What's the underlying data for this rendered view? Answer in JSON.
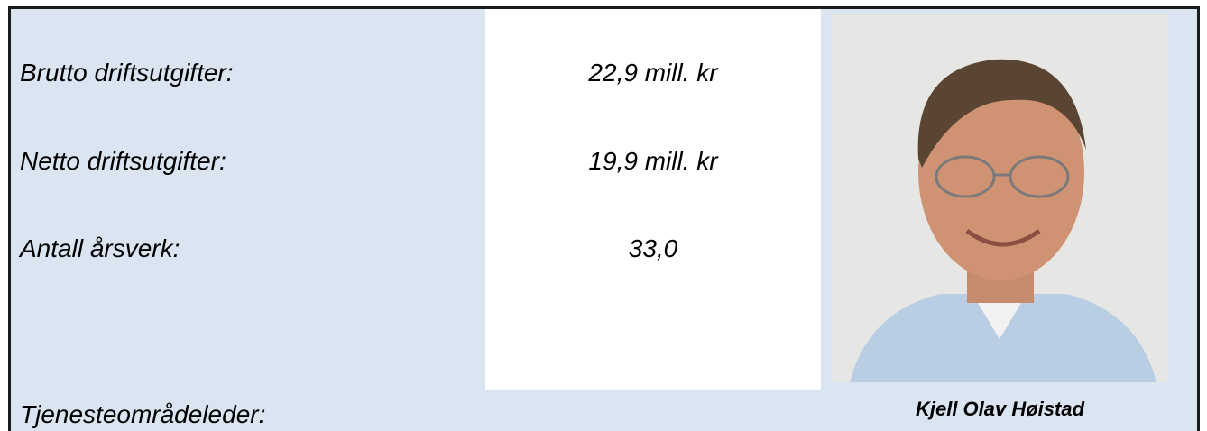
{
  "rows": [
    {
      "label": "Brutto driftsutgifter:",
      "value": "22,9 mill. kr"
    },
    {
      "label": "Netto driftsutgifter:",
      "value": "19,9 mill. kr"
    },
    {
      "label": "Antall årsverk:",
      "value": "33,0"
    }
  ],
  "leader": {
    "label": "Tjenesteområdeleder:",
    "name": "Kjell Olav Høistad"
  }
}
